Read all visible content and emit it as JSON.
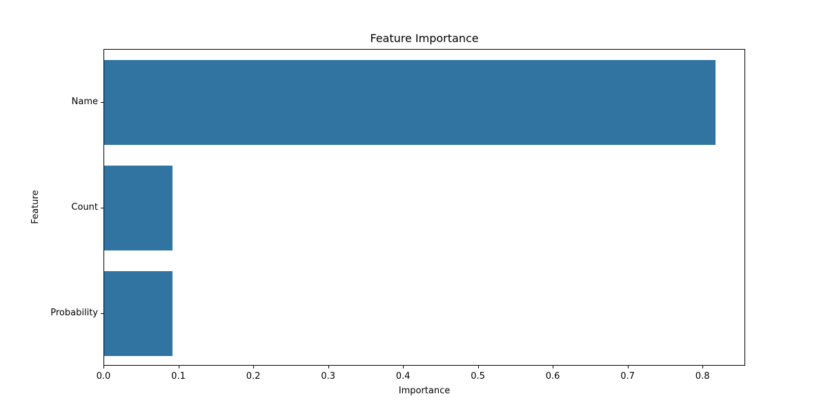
{
  "figure": {
    "background": "#ffffff"
  },
  "chart_data": {
    "type": "bar",
    "orientation": "horizontal",
    "title": "Feature Importance",
    "xlabel": "Importance",
    "ylabel": "Feature",
    "categories": [
      "Name",
      "Count",
      "Probability"
    ],
    "values": [
      0.816,
      0.091,
      0.091
    ],
    "xlim": [
      0,
      0.857
    ],
    "xticks": [
      0.0,
      0.1,
      0.2,
      0.3,
      0.4,
      0.5,
      0.6,
      0.7,
      0.8
    ],
    "xtick_labels": [
      "0.0",
      "0.1",
      "0.2",
      "0.3",
      "0.4",
      "0.5",
      "0.6",
      "0.7",
      "0.8"
    ],
    "bar_color": "#3274a1",
    "spine_color": "#000000",
    "grid": false,
    "legend": false,
    "bar_fraction_of_slot": 0.8
  }
}
